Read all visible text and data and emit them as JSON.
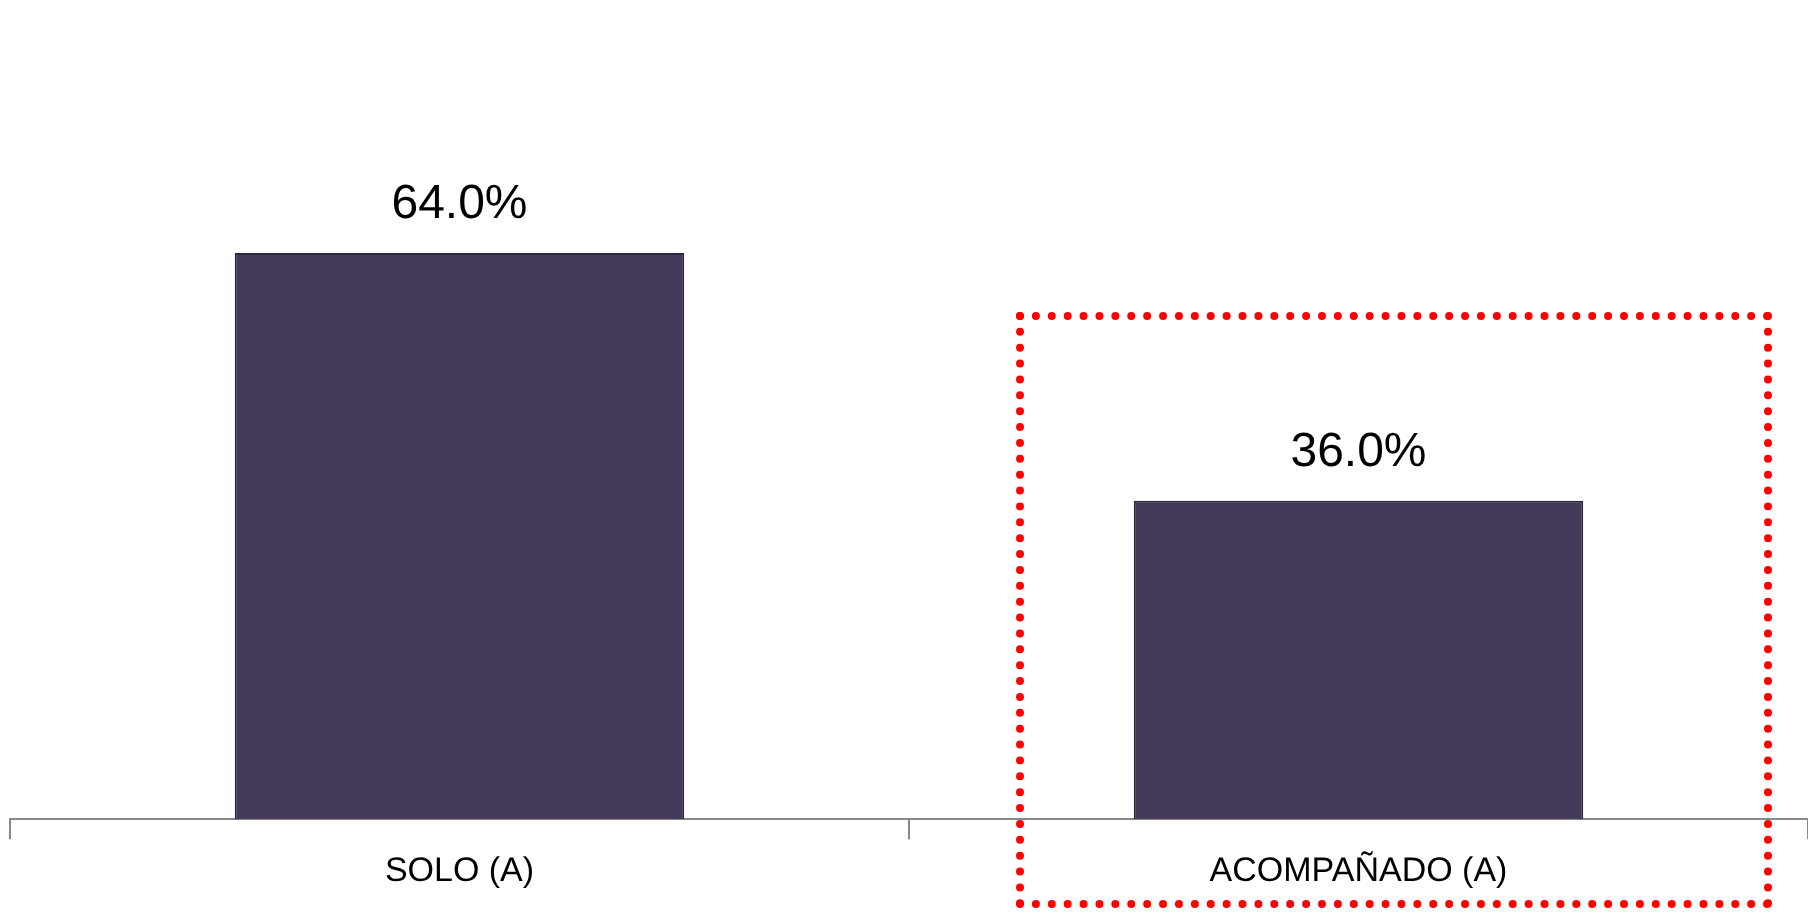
{
  "chart_data": {
    "type": "bar",
    "categories": [
      "SOLO (A)",
      "ACOMPAÑADO (A)"
    ],
    "values": [
      64.0,
      36.0
    ],
    "value_labels": [
      "64.0%",
      "36.0%"
    ],
    "color": "#463a5a",
    "grid": false,
    "legend": false
  }
}
